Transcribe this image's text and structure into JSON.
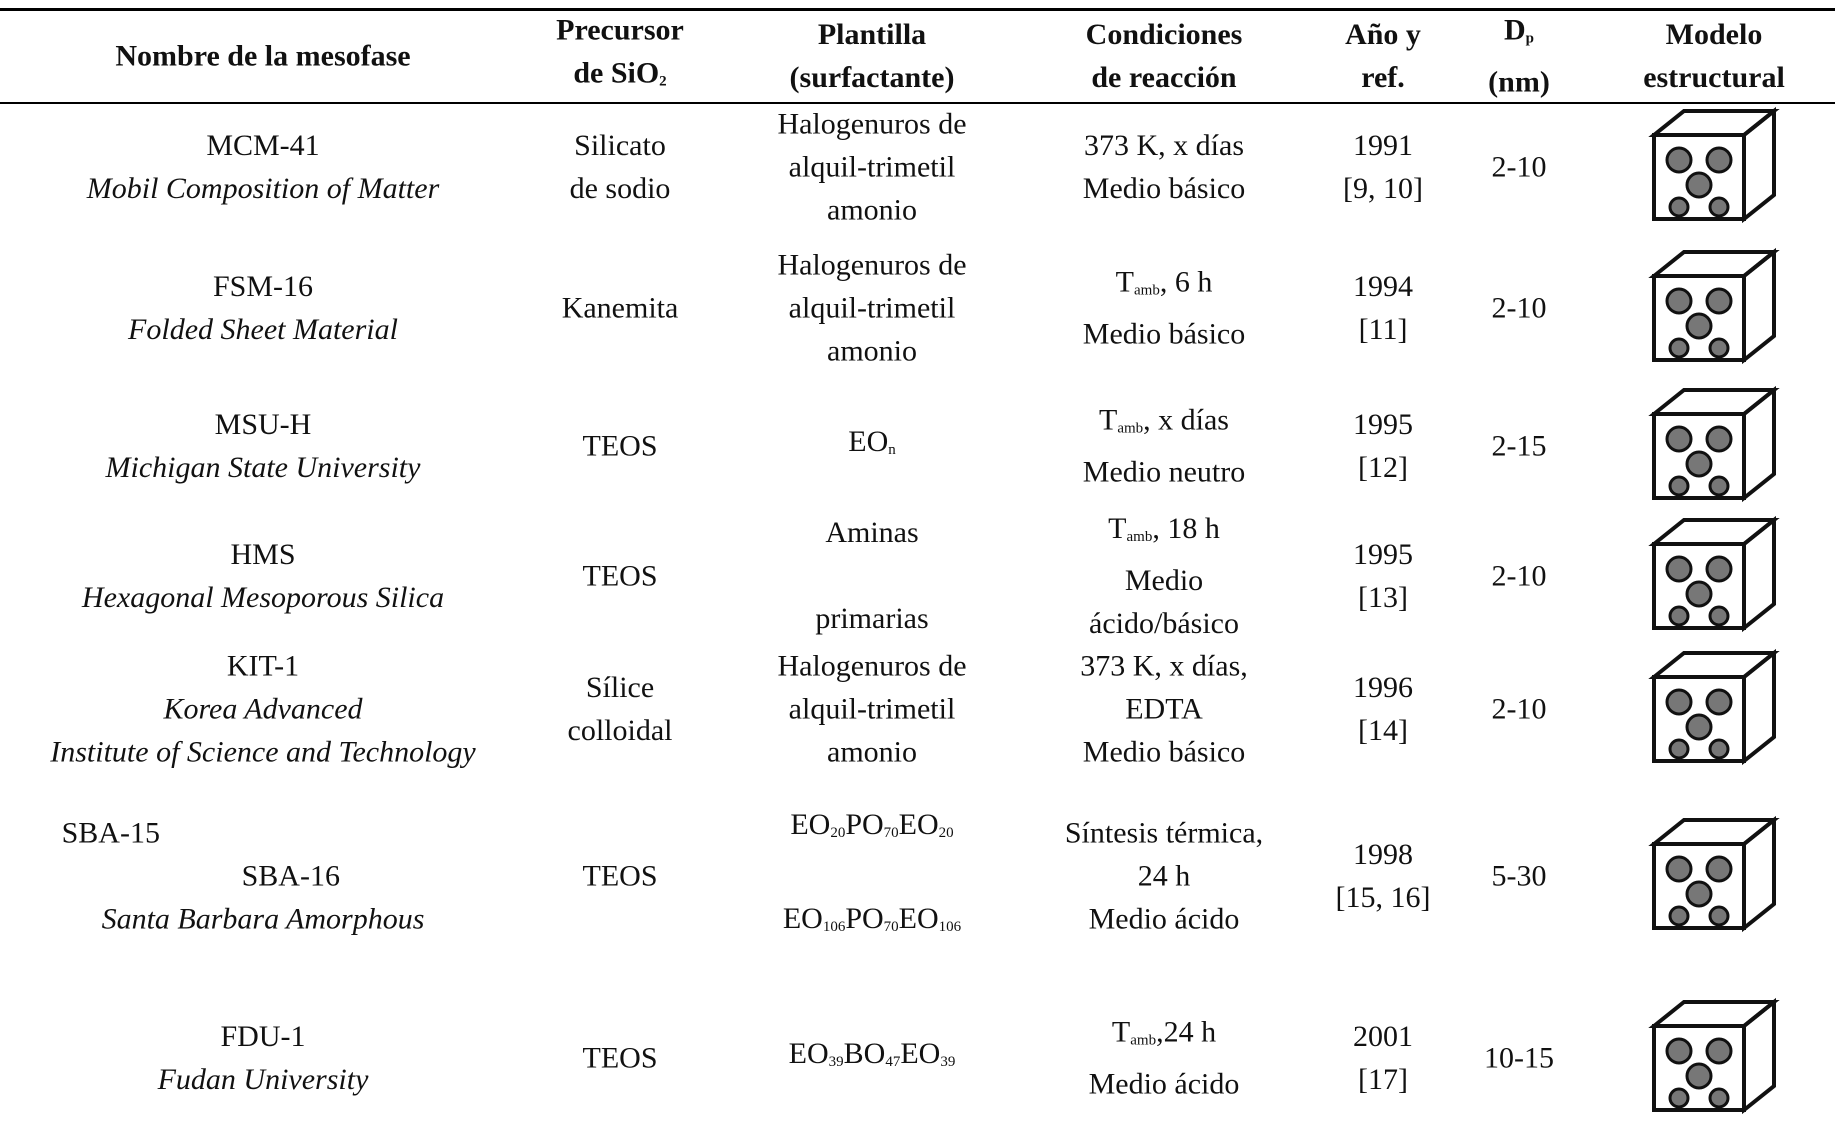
{
  "table": {
    "header": [
      [
        [
          "Nombre de la mesofase"
        ]
      ],
      [
        [
          "Precursor"
        ],
        [
          "de SiO",
          "2"
        ]
      ],
      [
        [
          "Plantilla"
        ],
        [
          "(surfactante)"
        ]
      ],
      [
        [
          "Condiciones"
        ],
        [
          "de reacción"
        ]
      ],
      [
        [
          "Año y"
        ],
        [
          "ref."
        ]
      ],
      [
        [
          "D",
          "p"
        ],
        [
          "(nm)"
        ]
      ],
      [
        [
          "Modelo"
        ],
        [
          "estructural"
        ]
      ]
    ],
    "rows": [
      {
        "name": [
          [
            "MCM-41"
          ]
        ],
        "full_name": [
          [
            "Mobil Composition of Matter"
          ]
        ],
        "precursor": [
          [
            "Silicato"
          ],
          [
            "de sodio"
          ]
        ],
        "template": [
          [
            "Halogenuros de"
          ],
          [
            "alquil-trimetil"
          ],
          [
            "amonio"
          ]
        ],
        "conditions": [
          [
            "373 K, x días"
          ],
          [
            "Medio básico"
          ]
        ],
        "year": [
          [
            "1991"
          ],
          [
            "[9, 10]"
          ]
        ],
        "dp": [
          [
            "2-10"
          ]
        ]
      },
      {
        "name": [
          [
            "FSM-16"
          ]
        ],
        "full_name": [
          [
            "Folded Sheet Material"
          ]
        ],
        "precursor": [
          [
            "Kanemita"
          ]
        ],
        "template": [
          [
            "Halogenuros de"
          ],
          [
            "alquil-trimetil"
          ],
          [
            "amonio"
          ]
        ],
        "conditions": [
          [
            "T",
            "amb",
            ", 6 h"
          ],
          [
            "Medio básico"
          ]
        ],
        "year": [
          [
            "1994"
          ],
          [
            "[11]"
          ]
        ],
        "dp": [
          [
            "2-10"
          ]
        ]
      },
      {
        "name": [
          [
            "MSU-H"
          ]
        ],
        "full_name": [
          [
            "Michigan State University"
          ]
        ],
        "precursor": [
          [
            "TEOS"
          ]
        ],
        "template": [
          [
            "EO",
            "n"
          ]
        ],
        "conditions": [
          [
            "T",
            "amb",
            ", x días"
          ],
          [
            "Medio neutro"
          ]
        ],
        "year": [
          [
            "1995"
          ],
          [
            "[12]"
          ]
        ],
        "dp": [
          [
            "2-15"
          ]
        ]
      },
      {
        "name": [
          [
            "HMS"
          ]
        ],
        "full_name": [
          [
            "Hexagonal Mesoporous Silica"
          ]
        ],
        "precursor": [
          [
            "TEOS"
          ]
        ],
        "template": [
          [
            "Aminas"
          ],
          [
            "primarias"
          ]
        ],
        "conditions": [
          [
            "T",
            "amb",
            ", 18 h"
          ],
          [
            "Medio"
          ],
          [
            "ácido/básico"
          ]
        ],
        "year": [
          [
            "1995"
          ],
          [
            "[13]"
          ]
        ],
        "dp": [
          [
            "2-10"
          ]
        ]
      },
      {
        "name": [
          [
            "KIT-1"
          ]
        ],
        "full_name": [
          [
            "Korea Advanced"
          ],
          [
            "Institute of Science and Technology"
          ]
        ],
        "precursor": [
          [
            "Sílice"
          ],
          [
            "colloidal"
          ]
        ],
        "template": [
          [
            "Halogenuros de"
          ],
          [
            "alquil-trimetil"
          ],
          [
            "amonio"
          ]
        ],
        "conditions": [
          [
            "373 K, x días,"
          ],
          [
            "EDTA"
          ],
          [
            "Medio básico"
          ]
        ],
        "year": [
          [
            "1996"
          ],
          [
            "[14]"
          ]
        ],
        "dp": [
          [
            "2-10"
          ]
        ]
      },
      {
        "name": [
          [
            "SBA-15"
          ],
          [
            "SBA-16"
          ]
        ],
        "full_name": [
          [
            "Santa Barbara Amorphous"
          ]
        ],
        "precursor": [
          [
            "TEOS"
          ]
        ],
        "template": [
          [
            "EO",
            "20",
            "PO",
            "70",
            "EO",
            "20"
          ],
          [
            "EO",
            "106",
            "PO",
            "70",
            "EO",
            "106"
          ]
        ],
        "conditions": [
          [
            "Síntesis térmica,"
          ],
          [
            "24 h"
          ],
          [
            "Medio ácido"
          ]
        ],
        "year": [
          [
            "1998"
          ],
          [
            "[15, 16]"
          ]
        ],
        "dp": [
          [
            "5-30"
          ]
        ]
      },
      {
        "name": [
          [
            "FDU-1"
          ]
        ],
        "full_name": [
          [
            "Fudan University"
          ]
        ],
        "precursor": [
          [
            "TEOS"
          ]
        ],
        "template": [
          [
            "EO",
            "39",
            "BO",
            "47",
            "EO",
            "39"
          ]
        ],
        "conditions": [
          [
            "T",
            "amb",
            ",24 h"
          ],
          [
            "Medio ácido"
          ]
        ],
        "year": [
          [
            "2001"
          ],
          [
            "[17]"
          ]
        ],
        "dp": [
          [
            "10-15"
          ]
        ]
      }
    ]
  }
}
